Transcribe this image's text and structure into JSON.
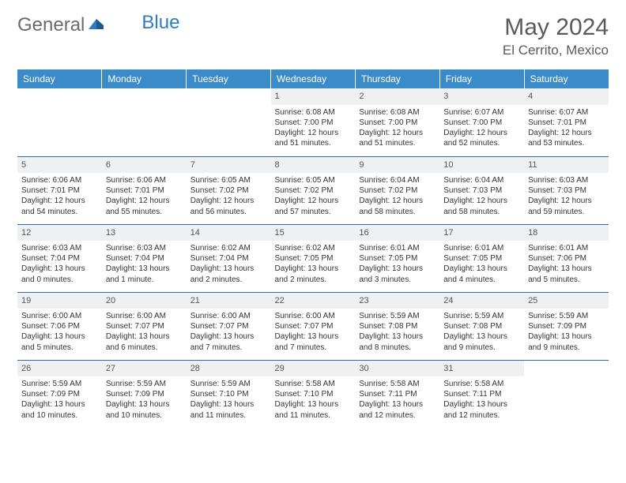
{
  "logo": {
    "part1": "General",
    "part2": "Blue"
  },
  "title": "May 2024",
  "location": "El Cerrito, Mexico",
  "colors": {
    "header_bg": "#3b8bc8",
    "header_text": "#ffffff",
    "day_strip_bg": "#eef0f2",
    "row_border": "#2e6da4",
    "text": "#333333",
    "logo_gray": "#6b6b6b",
    "logo_blue": "#2e7bbf"
  },
  "weekdays": [
    "Sunday",
    "Monday",
    "Tuesday",
    "Wednesday",
    "Thursday",
    "Friday",
    "Saturday"
  ],
  "weeks": [
    [
      null,
      null,
      null,
      {
        "n": "1",
        "sr": "6:08 AM",
        "ss": "7:00 PM",
        "dl": "12 hours and 51 minutes."
      },
      {
        "n": "2",
        "sr": "6:08 AM",
        "ss": "7:00 PM",
        "dl": "12 hours and 51 minutes."
      },
      {
        "n": "3",
        "sr": "6:07 AM",
        "ss": "7:00 PM",
        "dl": "12 hours and 52 minutes."
      },
      {
        "n": "4",
        "sr": "6:07 AM",
        "ss": "7:01 PM",
        "dl": "12 hours and 53 minutes."
      }
    ],
    [
      {
        "n": "5",
        "sr": "6:06 AM",
        "ss": "7:01 PM",
        "dl": "12 hours and 54 minutes."
      },
      {
        "n": "6",
        "sr": "6:06 AM",
        "ss": "7:01 PM",
        "dl": "12 hours and 55 minutes."
      },
      {
        "n": "7",
        "sr": "6:05 AM",
        "ss": "7:02 PM",
        "dl": "12 hours and 56 minutes."
      },
      {
        "n": "8",
        "sr": "6:05 AM",
        "ss": "7:02 PM",
        "dl": "12 hours and 57 minutes."
      },
      {
        "n": "9",
        "sr": "6:04 AM",
        "ss": "7:02 PM",
        "dl": "12 hours and 58 minutes."
      },
      {
        "n": "10",
        "sr": "6:04 AM",
        "ss": "7:03 PM",
        "dl": "12 hours and 58 minutes."
      },
      {
        "n": "11",
        "sr": "6:03 AM",
        "ss": "7:03 PM",
        "dl": "12 hours and 59 minutes."
      }
    ],
    [
      {
        "n": "12",
        "sr": "6:03 AM",
        "ss": "7:04 PM",
        "dl": "13 hours and 0 minutes."
      },
      {
        "n": "13",
        "sr": "6:03 AM",
        "ss": "7:04 PM",
        "dl": "13 hours and 1 minute."
      },
      {
        "n": "14",
        "sr": "6:02 AM",
        "ss": "7:04 PM",
        "dl": "13 hours and 2 minutes."
      },
      {
        "n": "15",
        "sr": "6:02 AM",
        "ss": "7:05 PM",
        "dl": "13 hours and 2 minutes."
      },
      {
        "n": "16",
        "sr": "6:01 AM",
        "ss": "7:05 PM",
        "dl": "13 hours and 3 minutes."
      },
      {
        "n": "17",
        "sr": "6:01 AM",
        "ss": "7:05 PM",
        "dl": "13 hours and 4 minutes."
      },
      {
        "n": "18",
        "sr": "6:01 AM",
        "ss": "7:06 PM",
        "dl": "13 hours and 5 minutes."
      }
    ],
    [
      {
        "n": "19",
        "sr": "6:00 AM",
        "ss": "7:06 PM",
        "dl": "13 hours and 5 minutes."
      },
      {
        "n": "20",
        "sr": "6:00 AM",
        "ss": "7:07 PM",
        "dl": "13 hours and 6 minutes."
      },
      {
        "n": "21",
        "sr": "6:00 AM",
        "ss": "7:07 PM",
        "dl": "13 hours and 7 minutes."
      },
      {
        "n": "22",
        "sr": "6:00 AM",
        "ss": "7:07 PM",
        "dl": "13 hours and 7 minutes."
      },
      {
        "n": "23",
        "sr": "5:59 AM",
        "ss": "7:08 PM",
        "dl": "13 hours and 8 minutes."
      },
      {
        "n": "24",
        "sr": "5:59 AM",
        "ss": "7:08 PM",
        "dl": "13 hours and 9 minutes."
      },
      {
        "n": "25",
        "sr": "5:59 AM",
        "ss": "7:09 PM",
        "dl": "13 hours and 9 minutes."
      }
    ],
    [
      {
        "n": "26",
        "sr": "5:59 AM",
        "ss": "7:09 PM",
        "dl": "13 hours and 10 minutes."
      },
      {
        "n": "27",
        "sr": "5:59 AM",
        "ss": "7:09 PM",
        "dl": "13 hours and 10 minutes."
      },
      {
        "n": "28",
        "sr": "5:59 AM",
        "ss": "7:10 PM",
        "dl": "13 hours and 11 minutes."
      },
      {
        "n": "29",
        "sr": "5:58 AM",
        "ss": "7:10 PM",
        "dl": "13 hours and 11 minutes."
      },
      {
        "n": "30",
        "sr": "5:58 AM",
        "ss": "7:11 PM",
        "dl": "13 hours and 12 minutes."
      },
      {
        "n": "31",
        "sr": "5:58 AM",
        "ss": "7:11 PM",
        "dl": "13 hours and 12 minutes."
      },
      null
    ]
  ],
  "labels": {
    "sunrise": "Sunrise:",
    "sunset": "Sunset:",
    "daylight": "Daylight:"
  }
}
